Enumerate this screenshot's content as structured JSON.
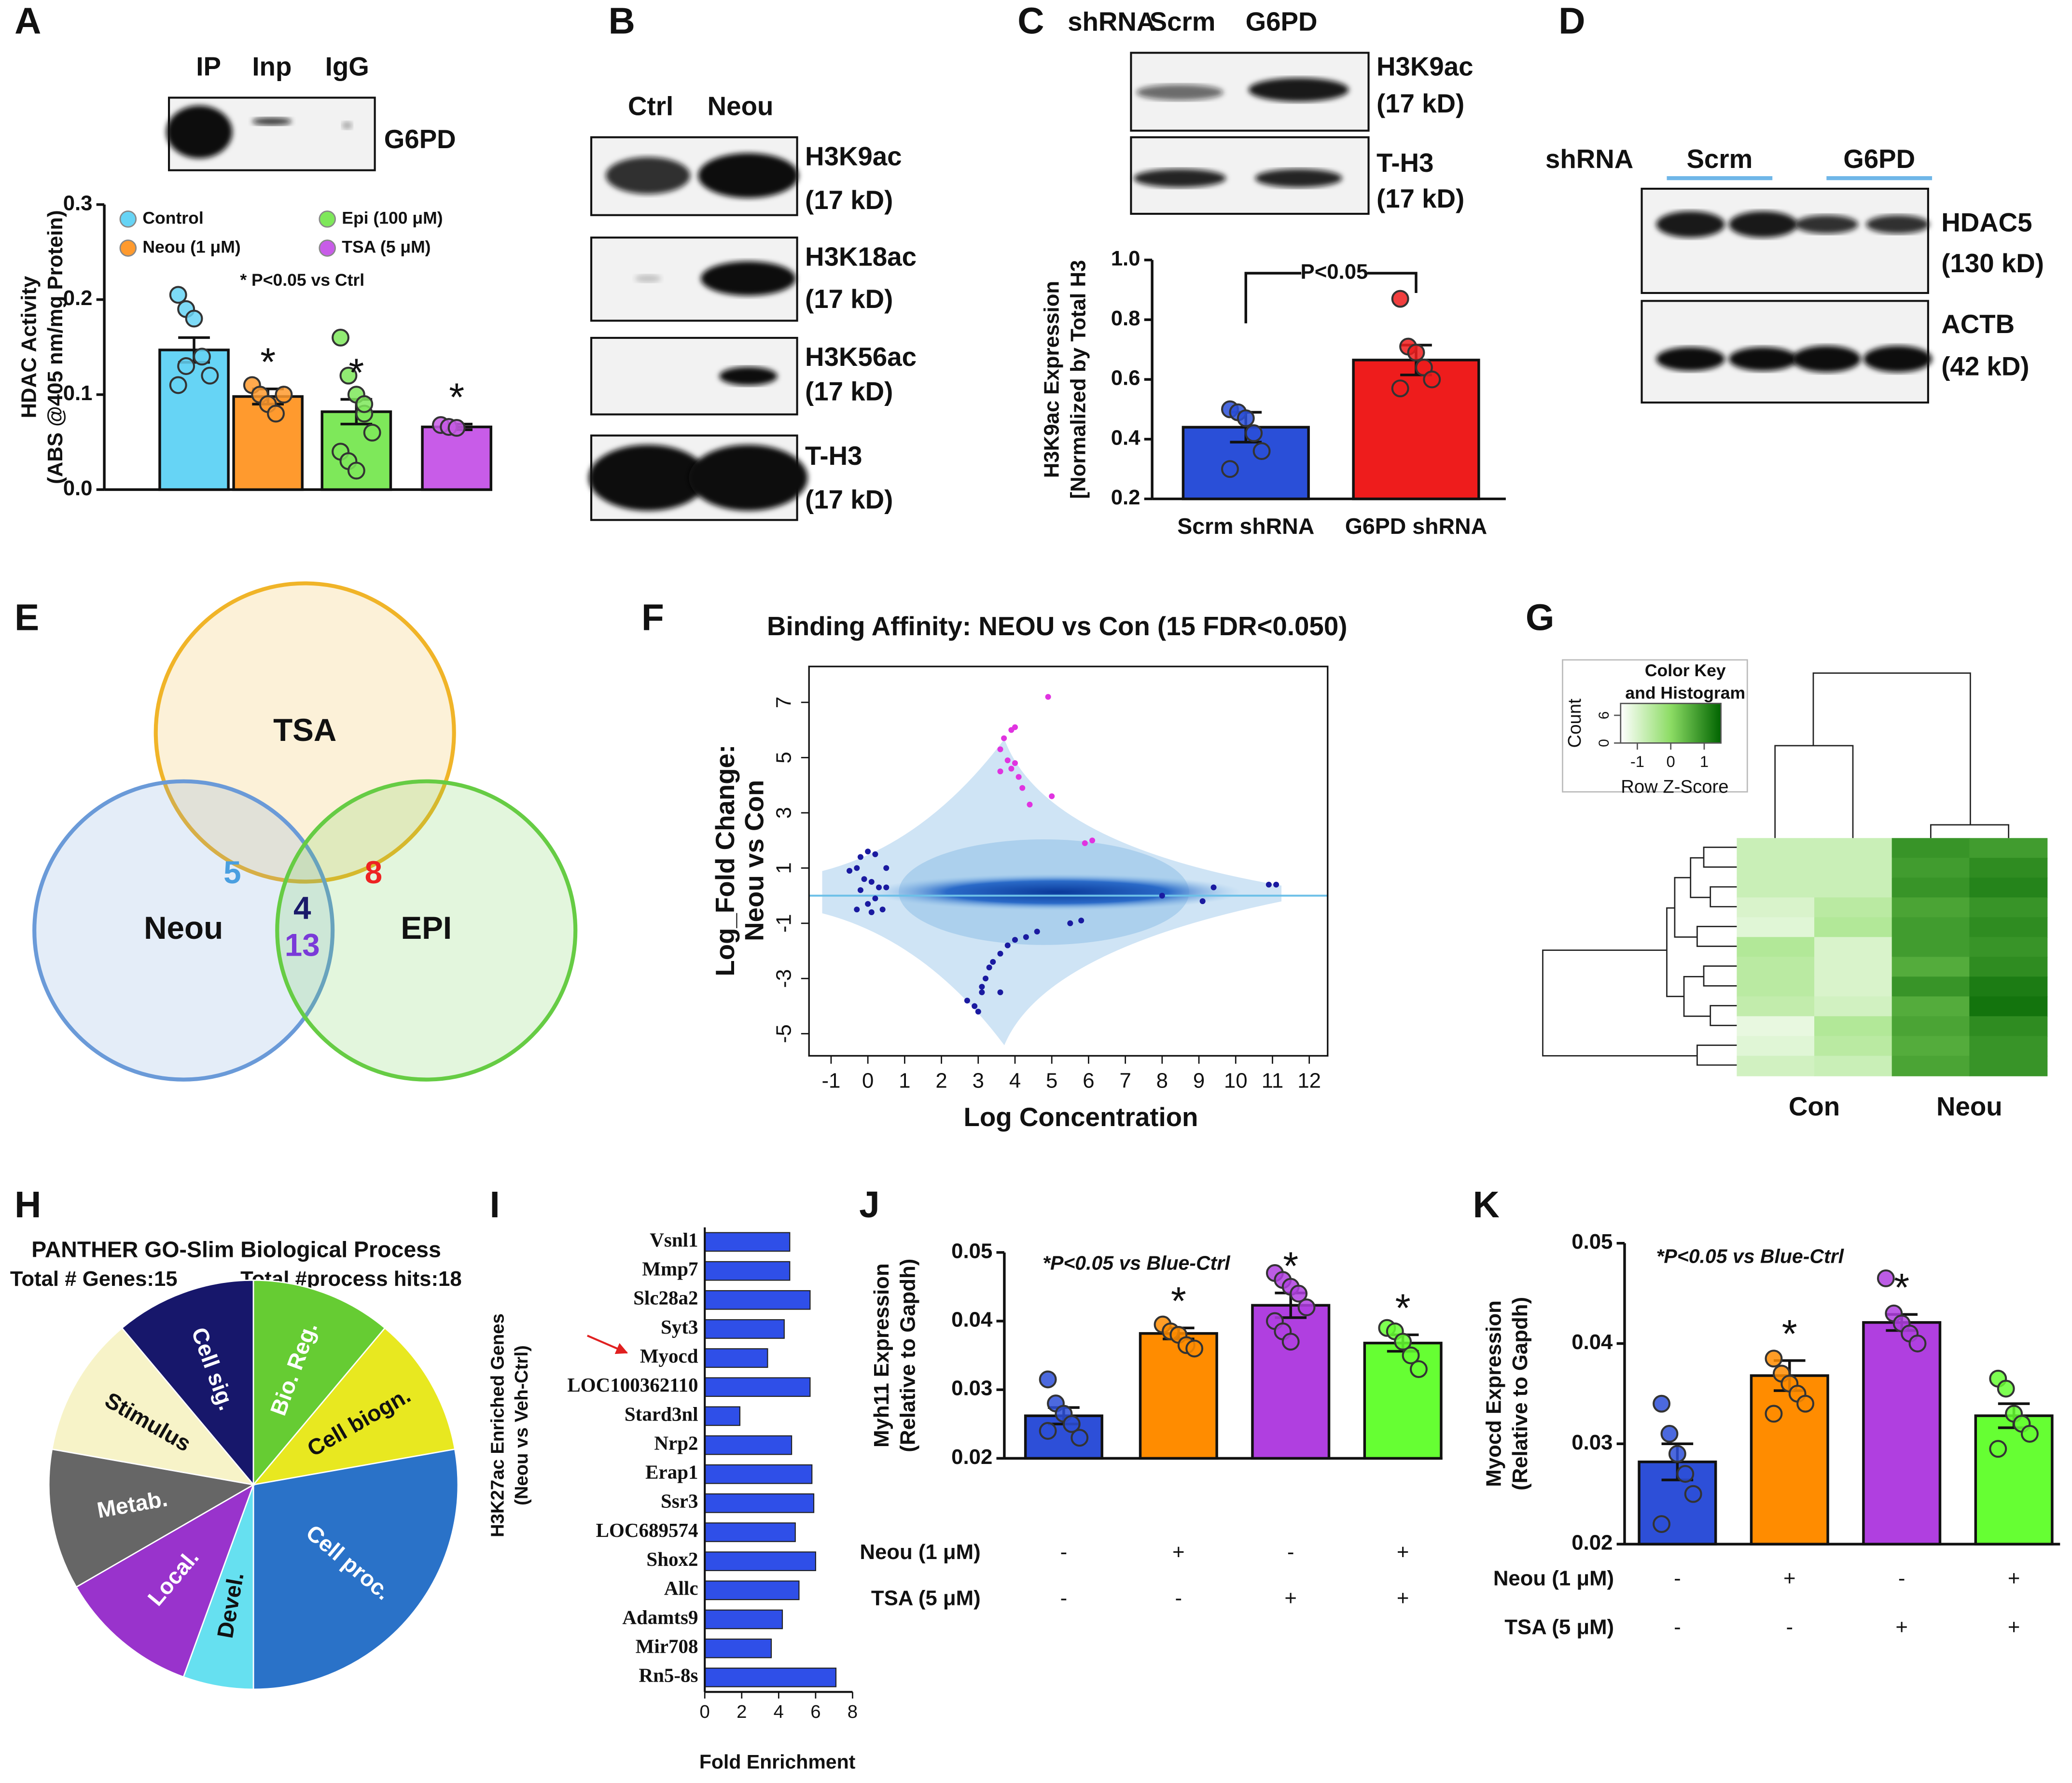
{
  "chart_data": [
    {
      "type": "bar",
      "panel": "A",
      "blot": {
        "lanes": [
          "IP",
          "Inp",
          "IgG"
        ],
        "rows": [
          [
            "G6PD"
          ]
        ]
      },
      "ylabel": [
        "HDAC Activity",
        "(ABS @405 nm/mg Protein)"
      ],
      "categories": [
        "Control",
        "Neou (1 μM)",
        "Epi (100 μM)",
        "TSA (5 μM)"
      ],
      "legend": true,
      "colors": [
        "#66d4f5",
        "#ff9a2e",
        "#7ee85a",
        "#c85ce8"
      ],
      "values": [
        0.147,
        0.098,
        0.082,
        0.066
      ],
      "errors": [
        0.013,
        0.008,
        0.013,
        0.003
      ],
      "points": [
        [
          0.205,
          0.19,
          0.18,
          0.14,
          0.12,
          0.11,
          0.13
        ],
        [
          0.11,
          0.1,
          0.09,
          0.08,
          0.1
        ],
        [
          0.16,
          0.12,
          0.1,
          0.08,
          0.06,
          0.04,
          0.03,
          0.02,
          0.09
        ],
        [
          0.068,
          0.066,
          0.065
        ]
      ],
      "significance": [
        null,
        "*",
        "*",
        "*"
      ],
      "annotation": "* P<0.05 vs Ctrl",
      "ylim": [
        0,
        0.3
      ],
      "yticks": [
        {
          "value": 0,
          "label": "0.0"
        },
        0.1,
        0.2,
        0.3
      ]
    },
    {
      "type": "blot",
      "panel": "B",
      "lanes": [
        "Ctrl",
        "Neou"
      ],
      "rows": [
        [
          "H3K9ac",
          "(17 kD)"
        ],
        [
          "H3K18ac",
          "(17 kD)"
        ],
        [
          "H3K56ac",
          "(17 kD)"
        ],
        [
          "T-H3",
          "(17 kD)"
        ]
      ]
    },
    {
      "type": "bar",
      "panel": "C",
      "blot": {
        "header": "shRNA",
        "lanes": [
          "Scrm",
          "G6PD"
        ],
        "rows": [
          [
            "H3K9ac",
            "(17 kD)"
          ],
          [
            "T-H3",
            "(17 kD)"
          ]
        ]
      },
      "ylabel": [
        "H3K9ac Expression",
        "[Normalized by Total H3"
      ],
      "categories": [
        "Scrm shRNA",
        "G6PD shRNA"
      ],
      "colors": [
        "#2a4fd8",
        "#ee1c1c"
      ],
      "values": [
        0.44,
        0.665
      ],
      "errors": [
        0.05,
        0.05
      ],
      "points": [
        [
          0.5,
          0.49,
          0.47,
          0.42,
          0.36,
          0.3
        ],
        [
          0.87,
          0.71,
          0.69,
          0.64,
          0.6,
          0.57
        ]
      ],
      "annotation": "P<0.05",
      "ylim": [
        0.2,
        1.0
      ],
      "yticks": [
        0.2,
        0.4,
        0.6,
        0.8,
        {
          "value": 1,
          "label": "1.0"
        }
      ]
    },
    {
      "type": "blot",
      "panel": "D",
      "header": "shRNA",
      "lanes": [
        "Scrm",
        "G6PD"
      ],
      "rows": [
        [
          "HDAC5",
          "(130 kD)"
        ],
        [
          "ACTB",
          "(42 kD)"
        ]
      ]
    },
    {
      "type": "venn",
      "panel": "E",
      "sets": [
        "TSA",
        "Neou",
        "EPI"
      ],
      "colors": [
        "#f0b428",
        "#6a9ad8",
        "#66cc44"
      ],
      "regions": [
        5,
        8,
        4,
        13
      ],
      "region_colors": [
        "#4a9fe0",
        "#ee2222",
        "#1a1a6a",
        "#7a3ad8"
      ]
    },
    {
      "type": "ma",
      "panel": "F",
      "title": "Binding Affinity: NEOU vs Con (15 FDR<0.050)",
      "xlabel": "Log Concentration",
      "ylabel": [
        "Log_Fold Change:",
        "Neou vs Con"
      ],
      "xlim": [
        -1.6,
        12.5
      ],
      "xticks": [
        -1,
        0,
        1,
        2,
        3,
        4,
        5,
        6,
        7,
        8,
        9,
        10,
        11,
        12
      ],
      "ylim": [
        -5.8,
        8.3
      ],
      "yticks": [
        -5,
        -3,
        -1,
        1,
        3,
        5,
        7
      ],
      "hline": 0,
      "series": [
        {
          "color": "#e033e0",
          "x": [
            4.9,
            3.9,
            4.0,
            3.7,
            3.6,
            3.8,
            3.9,
            3.6,
            4.1,
            4.0,
            4.2,
            4.4,
            5.0,
            5.9,
            6.1
          ],
          "y": [
            7.2,
            6.0,
            6.1,
            5.7,
            5.3,
            4.9,
            4.6,
            4.5,
            4.3,
            4.8,
            3.9,
            3.3,
            3.6,
            1.9,
            2.0
          ]
        },
        {
          "color": "#1a1aa0",
          "x": [
            -0.5,
            -0.3,
            -0.2,
            0,
            0.2,
            -0.1,
            0.1,
            0.3,
            -0.2,
            0.2,
            0,
            -0.3,
            0.1,
            0.4,
            0.5,
            0.5,
            2.7,
            2.9,
            3.0,
            3.1,
            3.2,
            3.3,
            3.4,
            3.6,
            3.8,
            4.0,
            4.3,
            4.6,
            3.1,
            3.6,
            5.5,
            5.8,
            8.0,
            9.1,
            9.4,
            10.9,
            11.1
          ],
          "y": [
            0.9,
            1.0,
            1.4,
            1.6,
            1.5,
            0.6,
            0.5,
            0.3,
            0.2,
            -0.1,
            -0.3,
            -0.5,
            -0.6,
            -0.5,
            1.0,
            0.3,
            -3.8,
            -4.0,
            -4.2,
            -3.5,
            -3.0,
            -2.6,
            -2.4,
            -2.1,
            -1.8,
            -1.6,
            -1.5,
            -1.3,
            -3.3,
            -3.5,
            -1.0,
            -0.9,
            0.0,
            -0.2,
            0.3,
            0.4,
            0.4
          ]
        }
      ]
    },
    {
      "type": "heatmap",
      "panel": "G",
      "key_title": [
        "Color Key",
        "and Histogram"
      ],
      "count_label": "Count",
      "key_label": "Row Z-Score",
      "zlim": [
        -1.5,
        1.5
      ],
      "keyticks": [
        -1,
        0,
        1
      ],
      "countticks": [
        0,
        6
      ],
      "columns": [
        "Con",
        "Neou"
      ],
      "matrix": [
        [
          -0.8,
          -0.8,
          0.9,
          0.8
        ],
        [
          -0.8,
          -0.8,
          0.8,
          1.0
        ],
        [
          -0.8,
          -0.8,
          0.9,
          1.1
        ],
        [
          -1.0,
          -0.6,
          0.7,
          0.9
        ],
        [
          -1.1,
          -0.5,
          0.8,
          1.0
        ],
        [
          -0.5,
          -1.0,
          0.8,
          0.9
        ],
        [
          -0.6,
          -1.0,
          0.6,
          1.0
        ],
        [
          -0.6,
          -1.0,
          0.9,
          1.2
        ],
        [
          -0.7,
          -0.9,
          0.6,
          1.3
        ],
        [
          -1.2,
          -0.5,
          0.7,
          1.0
        ],
        [
          -1.1,
          -0.6,
          0.6,
          0.9
        ],
        [
          -0.9,
          -0.8,
          0.7,
          0.9
        ]
      ]
    },
    {
      "type": "pie",
      "panel": "H",
      "title": "PANTHER GO-Slim Biological Process",
      "subtitle": [
        "Total # Genes:15",
        "Total #process hits:18"
      ],
      "categories": [
        "Cell sig.",
        "Bio. Reg.",
        "Cell biogn.",
        "Cell proc.",
        "Devel.",
        "Local.",
        "Metab.",
        "Stimulus"
      ],
      "values": [
        2,
        2,
        2,
        5,
        1,
        2,
        2,
        2
      ],
      "colors": [
        "#17176b",
        "#66cc33",
        "#e8e820",
        "#2a72c8",
        "#66e0f0",
        "#9933cc",
        "#666666",
        "#f7f3c8"
      ]
    },
    {
      "type": "hbar",
      "panel": "I",
      "ylabel": [
        "H3K27ac Enriched Genes",
        "(Neou vs Veh-Ctrl)"
      ],
      "xlabel": "Fold Enrichment",
      "color": "#2f4fe8",
      "categories": [
        "Vsnl1",
        "Mmp7",
        "Slc28a2",
        "Syt3",
        "Myocd",
        "LOC100362110",
        "Stard3nl",
        "Nrp2",
        "Erap1",
        "Ssr3",
        "LOC689574",
        "Shox2",
        "Allc",
        "Adamts9",
        "Mir708",
        "Rn5-8s"
      ],
      "values": [
        4.6,
        4.6,
        5.7,
        4.3,
        3.4,
        5.7,
        1.9,
        4.7,
        5.8,
        5.9,
        4.9,
        6.0,
        5.1,
        4.2,
        3.6,
        7.1
      ],
      "xlim": [
        0,
        8
      ],
      "xticks": [
        0,
        2,
        4,
        6,
        8
      ]
    },
    {
      "type": "bar",
      "panel": "J",
      "ylabel": [
        "Myh11 Expression",
        "(Relative to Gapdh)"
      ],
      "colors": [
        "#2d4fd8",
        "#ff8c00",
        "#b03fe0",
        "#66ff33"
      ],
      "values": [
        0.0262,
        0.0382,
        0.0423,
        0.0368
      ],
      "errors": [
        0.0012,
        0.0008,
        0.0018,
        0.0012
      ],
      "points": [
        [
          0.0315,
          0.028,
          0.0265,
          0.025,
          0.023,
          0.024
        ],
        [
          0.0395,
          0.0385,
          0.038,
          0.0365,
          0.036
        ],
        [
          0.047,
          0.046,
          0.045,
          0.044,
          0.042,
          0.04,
          0.0385,
          0.037
        ],
        [
          0.039,
          0.0385,
          0.037,
          0.035,
          0.033
        ]
      ],
      "significance": [
        null,
        "*",
        "*",
        "*"
      ],
      "annotation": "*P<0.05 vs Blue-Ctrl",
      "treatments": [
        {
          "name": "Neou (1 μM)",
          "values": [
            "-",
            "+",
            "-",
            "+"
          ]
        },
        {
          "name": "TSA (5 μM)",
          "values": [
            "-",
            "-",
            "+",
            "+"
          ]
        }
      ],
      "ylim": [
        0.02,
        0.05
      ],
      "yticks": [
        0.02,
        0.03,
        0.04,
        0.05
      ]
    },
    {
      "type": "bar",
      "panel": "K",
      "ylabel": [
        "Myocd Expression",
        "(Relative to Gapdh)"
      ],
      "colors": [
        "#2d4fd8",
        "#ff8c00",
        "#b03fe0",
        "#66ff33"
      ],
      "values": [
        0.0282,
        0.0368,
        0.0421,
        0.0328
      ],
      "errors": [
        0.0018,
        0.0015,
        0.0008,
        0.0012
      ],
      "points": [
        [
          0.034,
          0.031,
          0.029,
          0.027,
          0.025,
          0.022
        ],
        [
          0.0385,
          0.037,
          0.036,
          0.035,
          0.034,
          0.033
        ],
        [
          0.0465,
          0.043,
          0.042,
          0.041,
          0.04
        ],
        [
          0.0365,
          0.0355,
          0.033,
          0.032,
          0.031,
          0.0295
        ]
      ],
      "significance": [
        null,
        "*",
        "*",
        null
      ],
      "annotation": "*P<0.05 vs Blue-Ctrl",
      "treatments": [
        {
          "name": "Neou (1 μM)",
          "values": [
            "-",
            "+",
            "-",
            "+"
          ]
        },
        {
          "name": "TSA (5 μM)",
          "values": [
            "-",
            "-",
            "+",
            "+"
          ]
        }
      ],
      "ylim": [
        0.02,
        0.05
      ],
      "yticks": [
        0.02,
        0.03,
        0.04,
        0.05
      ]
    }
  ]
}
